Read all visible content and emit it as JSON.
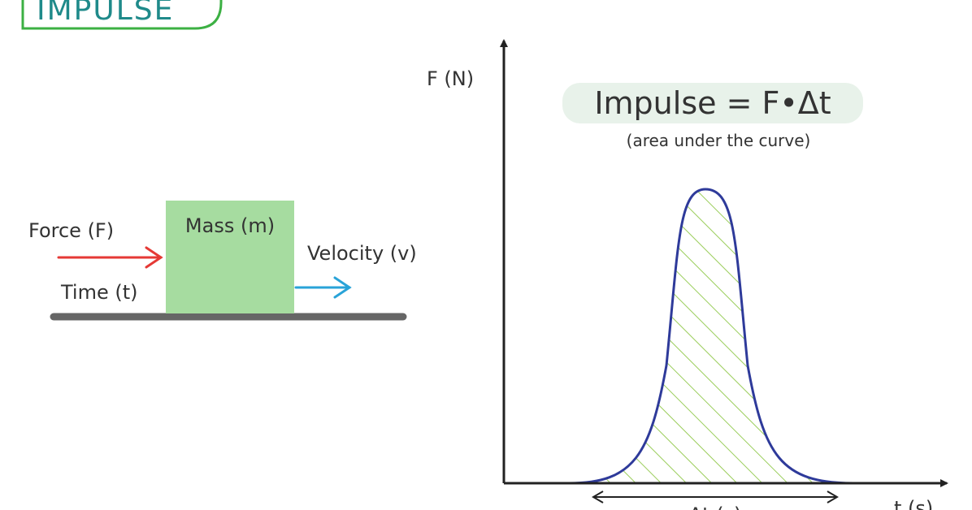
{
  "header": {
    "title": "IMPULSE"
  },
  "scene": {
    "force_label": "Force (F)",
    "mass_label": "Mass (m)",
    "velocity_label": "Velocity (v)",
    "time_label": "Time (t)"
  },
  "graph": {
    "y_axis_label": "F (N)",
    "x_axis_label": "t (s)",
    "formula": "Impulse = F•Δt",
    "formula_note": "(area under the curve)",
    "interval_label": "Δt (s)"
  }
}
